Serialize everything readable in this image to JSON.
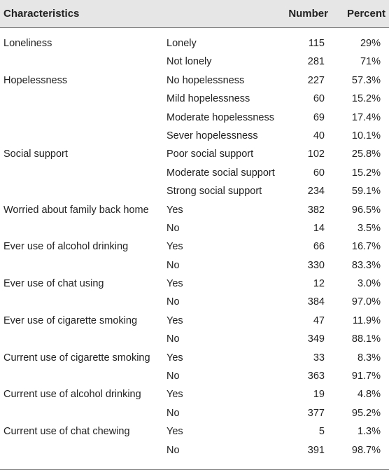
{
  "header": {
    "characteristics": "Characteristics",
    "number": "Number",
    "percent": "Percent"
  },
  "rows": [
    {
      "characteristic": "Loneliness",
      "category": "Lonely",
      "number": "115",
      "percent": "29%"
    },
    {
      "characteristic": "",
      "category": "Not lonely",
      "number": "281",
      "percent": "71%"
    },
    {
      "characteristic": "Hopelessness",
      "category": "No hopelessness",
      "number": "227",
      "percent": "57.3%"
    },
    {
      "characteristic": "",
      "category": "Mild hopelessness",
      "number": "60",
      "percent": "15.2%"
    },
    {
      "characteristic": "",
      "category": "Moderate hopelessness",
      "number": "69",
      "percent": "17.4%"
    },
    {
      "characteristic": "",
      "category": "Sever hopelessness",
      "number": "40",
      "percent": "10.1%"
    },
    {
      "characteristic": "Social support",
      "category": "Poor social support",
      "number": "102",
      "percent": "25.8%"
    },
    {
      "characteristic": "",
      "category": "Moderate social support",
      "number": "60",
      "percent": "15.2%"
    },
    {
      "characteristic": "",
      "category": "Strong social support",
      "number": "234",
      "percent": "59.1%"
    },
    {
      "characteristic": "Worried about family back home",
      "category": "Yes",
      "number": "382",
      "percent": "96.5%"
    },
    {
      "characteristic": "",
      "category": "No",
      "number": "14",
      "percent": "3.5%"
    },
    {
      "characteristic": "Ever use of alcohol drinking",
      "category": "Yes",
      "number": "66",
      "percent": "16.7%"
    },
    {
      "characteristic": "",
      "category": "No",
      "number": "330",
      "percent": "83.3%"
    },
    {
      "characteristic": "Ever use of chat using",
      "category": "Yes",
      "number": "12",
      "percent": "3.0%"
    },
    {
      "characteristic": "",
      "category": "No",
      "number": "384",
      "percent": "97.0%"
    },
    {
      "characteristic": "Ever use of cigarette smoking",
      "category": "Yes",
      "number": "47",
      "percent": "11.9%"
    },
    {
      "characteristic": "",
      "category": "No",
      "number": "349",
      "percent": "88.1%"
    },
    {
      "characteristic": "Current use of cigarette smoking",
      "category": "Yes",
      "number": "33",
      "percent": "8.3%"
    },
    {
      "characteristic": "",
      "category": "No",
      "number": "363",
      "percent": "91.7%"
    },
    {
      "characteristic": "Current use of alcohol drinking",
      "category": "Yes",
      "number": "19",
      "percent": "4.8%"
    },
    {
      "characteristic": "",
      "category": "No",
      "number": "377",
      "percent": "95.2%"
    },
    {
      "characteristic": "Current use of chat chewing",
      "category": "Yes",
      "number": "5",
      "percent": "1.3%"
    },
    {
      "characteristic": "",
      "category": "No",
      "number": "391",
      "percent": "98.7%"
    }
  ]
}
